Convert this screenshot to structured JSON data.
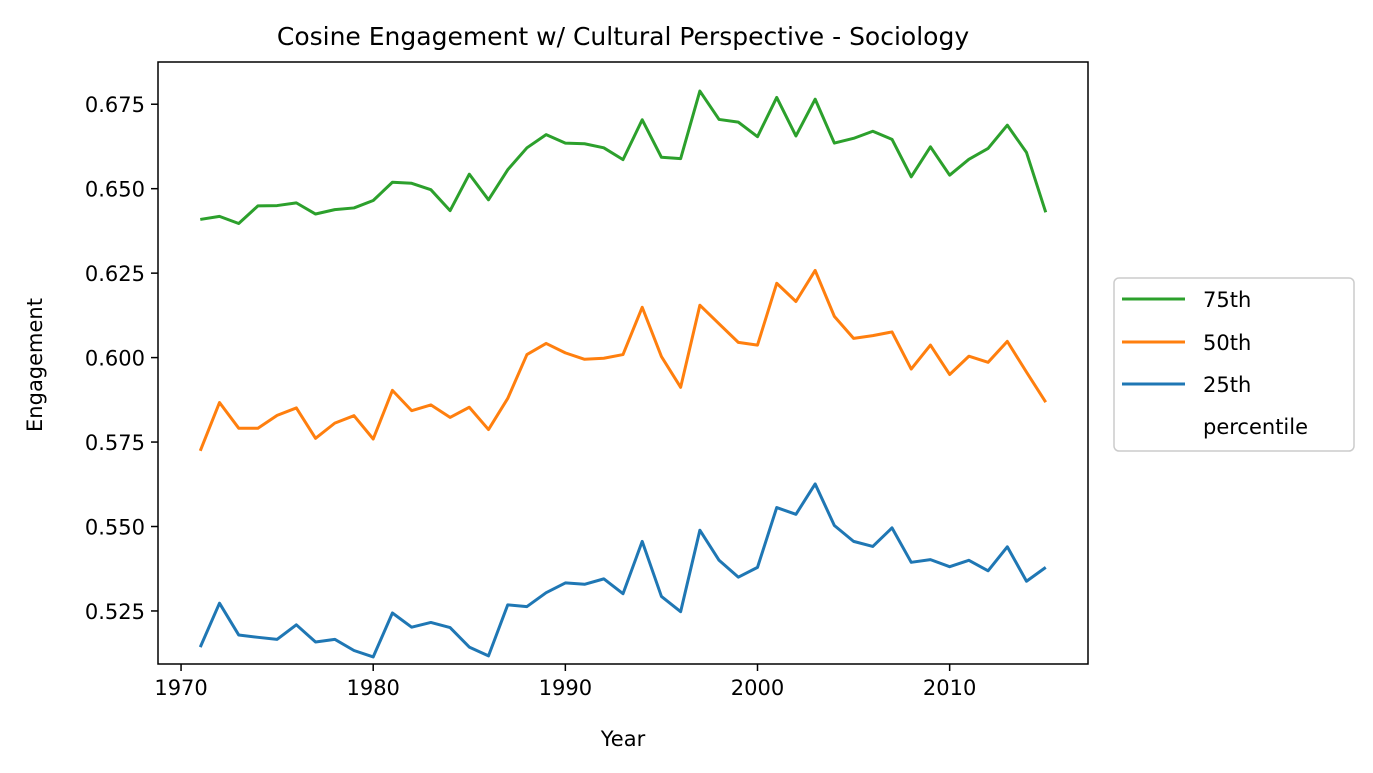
{
  "chart_data": {
    "type": "line",
    "title": "Cosine Engagement w/ Cultural Perspective - Sociology",
    "xlabel": "Year",
    "ylabel": "Engagement",
    "xlim": [
      1968.8,
      2017.2
    ],
    "ylim": [
      0.5093,
      0.6875
    ],
    "xticks": [
      1970,
      1980,
      1990,
      2000,
      2010
    ],
    "yticks": [
      0.525,
      0.55,
      0.575,
      0.6,
      0.625,
      0.65,
      0.675
    ],
    "ytick_labels": [
      "0.525",
      "0.550",
      "0.575",
      "0.600",
      "0.625",
      "0.650",
      "0.675"
    ],
    "grid": false,
    "legend_position": "center-right outside",
    "legend_entries": [
      "75th",
      "50th",
      "25th",
      "percentile"
    ],
    "x": [
      1971,
      1972,
      1973,
      1974,
      1975,
      1976,
      1977,
      1978,
      1979,
      1980,
      1981,
      1982,
      1983,
      1984,
      1985,
      1986,
      1987,
      1988,
      1989,
      1990,
      1991,
      1992,
      1993,
      1994,
      1995,
      1996,
      1997,
      1998,
      1999,
      2000,
      2001,
      2002,
      2003,
      2004,
      2005,
      2006,
      2007,
      2008,
      2009,
      2010,
      2011,
      2012,
      2013,
      2014,
      2015
    ],
    "series": [
      {
        "name": "75th",
        "color": "#2ca02c",
        "values": [
          0.6409,
          0.6418,
          0.6397,
          0.6449,
          0.645,
          0.6458,
          0.6425,
          0.6438,
          0.6443,
          0.6465,
          0.6519,
          0.6516,
          0.6497,
          0.6435,
          0.6543,
          0.6467,
          0.6556,
          0.6621,
          0.666,
          0.6635,
          0.6633,
          0.6621,
          0.6586,
          0.6704,
          0.6593,
          0.6589,
          0.6789,
          0.6705,
          0.6697,
          0.6654,
          0.677,
          0.6656,
          0.6765,
          0.6635,
          0.6649,
          0.667,
          0.6646,
          0.6535,
          0.6624,
          0.654,
          0.6587,
          0.6619,
          0.6688,
          0.6607,
          0.643
        ]
      },
      {
        "name": "50th",
        "color": "#ff7f0e",
        "values": [
          0.5724,
          0.5867,
          0.5791,
          0.5791,
          0.5829,
          0.5851,
          0.5761,
          0.5806,
          0.5828,
          0.5759,
          0.5903,
          0.5843,
          0.586,
          0.5823,
          0.5853,
          0.5787,
          0.5879,
          0.6009,
          0.6042,
          0.6014,
          0.5995,
          0.5998,
          0.6009,
          0.6149,
          0.6003,
          0.5912,
          0.6155,
          0.61,
          0.6045,
          0.6037,
          0.622,
          0.6166,
          0.6258,
          0.6122,
          0.6057,
          0.6065,
          0.6076,
          0.5966,
          0.6037,
          0.595,
          0.6004,
          0.5986,
          0.6048,
          0.5957,
          0.5868
        ]
      },
      {
        "name": "25th",
        "color": "#1f77b4",
        "values": [
          0.5143,
          0.5273,
          0.5179,
          0.5172,
          0.5166,
          0.5209,
          0.5158,
          0.5166,
          0.5133,
          0.5114,
          0.5244,
          0.5202,
          0.5216,
          0.5201,
          0.5143,
          0.5117,
          0.5268,
          0.5263,
          0.5304,
          0.5333,
          0.5329,
          0.5345,
          0.5301,
          0.5456,
          0.5293,
          0.5248,
          0.5489,
          0.54,
          0.535,
          0.5379,
          0.5556,
          0.5536,
          0.5626,
          0.5503,
          0.5456,
          0.5441,
          0.5496,
          0.5394,
          0.5402,
          0.5381,
          0.54,
          0.5369,
          0.544,
          0.5338,
          0.5379
        ]
      }
    ]
  }
}
